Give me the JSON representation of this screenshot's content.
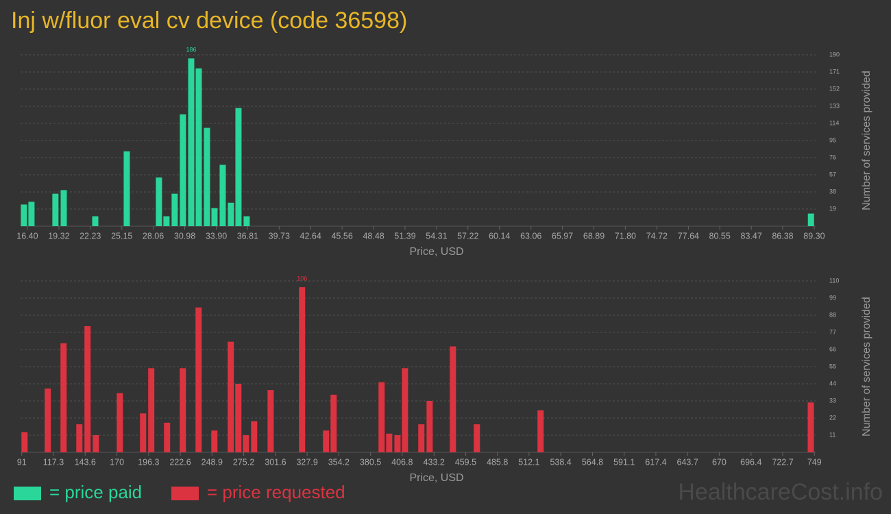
{
  "title": "Inj w/fluor eval cv device (code 36598)",
  "watermark": "HealthcareCost.info",
  "chart_data": [
    {
      "type": "bar",
      "x_label": "Price, USD",
      "y_label": "Number of services provided",
      "x": [
        16.08,
        16.78,
        19.0,
        19.77,
        22.69,
        25.61,
        28.59,
        29.29,
        30.05,
        30.81,
        31.58,
        32.28,
        33.04,
        33.74,
        34.5,
        35.26,
        35.96,
        36.72,
        89.0
      ],
      "series": [
        {
          "name": "= price paid",
          "color": "#2ad69a",
          "values": [
            24,
            27,
            36,
            40,
            11,
            83,
            54,
            11,
            36,
            124,
            186,
            175,
            109,
            20,
            68,
            26,
            131,
            11,
            14
          ]
        }
      ],
      "label_max": true,
      "grid": true,
      "xlim": [
        15.77,
        89.43
      ],
      "xticks": [
        {
          "value": 16.4,
          "label": "16.40"
        },
        19.32,
        22.23,
        25.15,
        28.06,
        30.98,
        {
          "value": 33.9,
          "label": "33.90"
        },
        36.81,
        39.73,
        42.64,
        45.56,
        48.48,
        51.39,
        54.31,
        57.22,
        60.14,
        63.06,
        65.97,
        68.89,
        {
          "value": 71.8,
          "label": "71.80"
        },
        74.72,
        77.64,
        80.55,
        83.47,
        86.38,
        {
          "value": 89.3,
          "label": "89.30"
        }
      ],
      "ylim": [
        0,
        190
      ],
      "yticks": [
        19,
        38,
        57,
        76,
        95,
        114,
        133,
        152,
        171,
        190
      ]
    },
    {
      "type": "bar",
      "x_label": "Price, USD",
      "y_label": "Number of services provided",
      "x": [
        93.3,
        112.6,
        125.7,
        138.8,
        145.6,
        152.5,
        172.4,
        191.7,
        198.5,
        211.6,
        224.7,
        237.8,
        250.9,
        264.5,
        270.8,
        277.1,
        283.9,
        297.6,
        323.7,
        343.6,
        349.9,
        389.7,
        396.0,
        402.9,
        409.1,
        422.7,
        429.6,
        448.9,
        468.8,
        521.7,
        746.0
      ],
      "series": [
        {
          "name": "= price requested",
          "color": "#dc3341",
          "values": [
            13,
            41,
            70,
            18,
            81,
            11,
            38,
            25,
            54,
            19,
            54,
            93,
            14,
            71,
            44,
            11,
            20,
            40,
            106,
            14,
            37,
            45,
            12,
            11,
            54,
            18,
            33,
            68,
            18,
            27,
            32
          ]
        }
      ],
      "label_max": true,
      "grid": true,
      "xlim": [
        90,
        750
      ],
      "xticks": [
        91,
        117.3,
        143.6,
        170,
        196.3,
        222.6,
        248.9,
        275.2,
        301.6,
        327.9,
        354.2,
        380.5,
        406.8,
        433.2,
        459.5,
        485.8,
        512.1,
        538.4,
        564.8,
        591.1,
        617.4,
        643.7,
        670,
        696.4,
        722.7,
        749
      ],
      "ylim": [
        0,
        110
      ],
      "yticks": [
        11,
        22,
        33,
        44,
        55,
        66,
        77,
        88,
        99,
        110
      ]
    }
  ]
}
